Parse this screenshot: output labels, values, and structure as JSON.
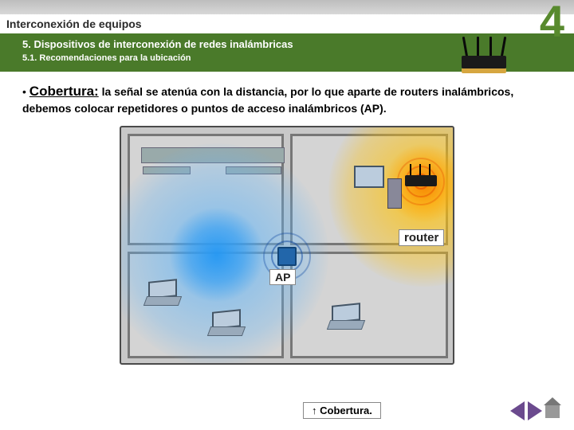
{
  "header": {
    "main_title": "Interconexión de equipos"
  },
  "section": {
    "title": "5.  Dispositivos de interconexión de redes inalámbricas",
    "subsection": "5.1. Recomendaciones para la ubicación",
    "chapter_number": "4"
  },
  "content": {
    "term": "Cobertura:",
    "body": " la señal se atenúa con la distancia, por lo que aparte de routers inalámbricos, debemos colocar repetidores o puntos de acceso inalámbricos (AP)."
  },
  "diagram": {
    "ap_label": "AP",
    "router_label": "router",
    "caption": "↑ Cobertura.",
    "coverage_ap_color": "#64b5f6",
    "coverage_router_color": "#ffc107",
    "background": "#c8c8c8",
    "border_color": "#4a4a4a",
    "room_fill": "#d4d4d4",
    "room_border": "#777777"
  },
  "nav": {
    "prev_color": "#6b4a8e",
    "next_color": "#6b4a8e"
  }
}
